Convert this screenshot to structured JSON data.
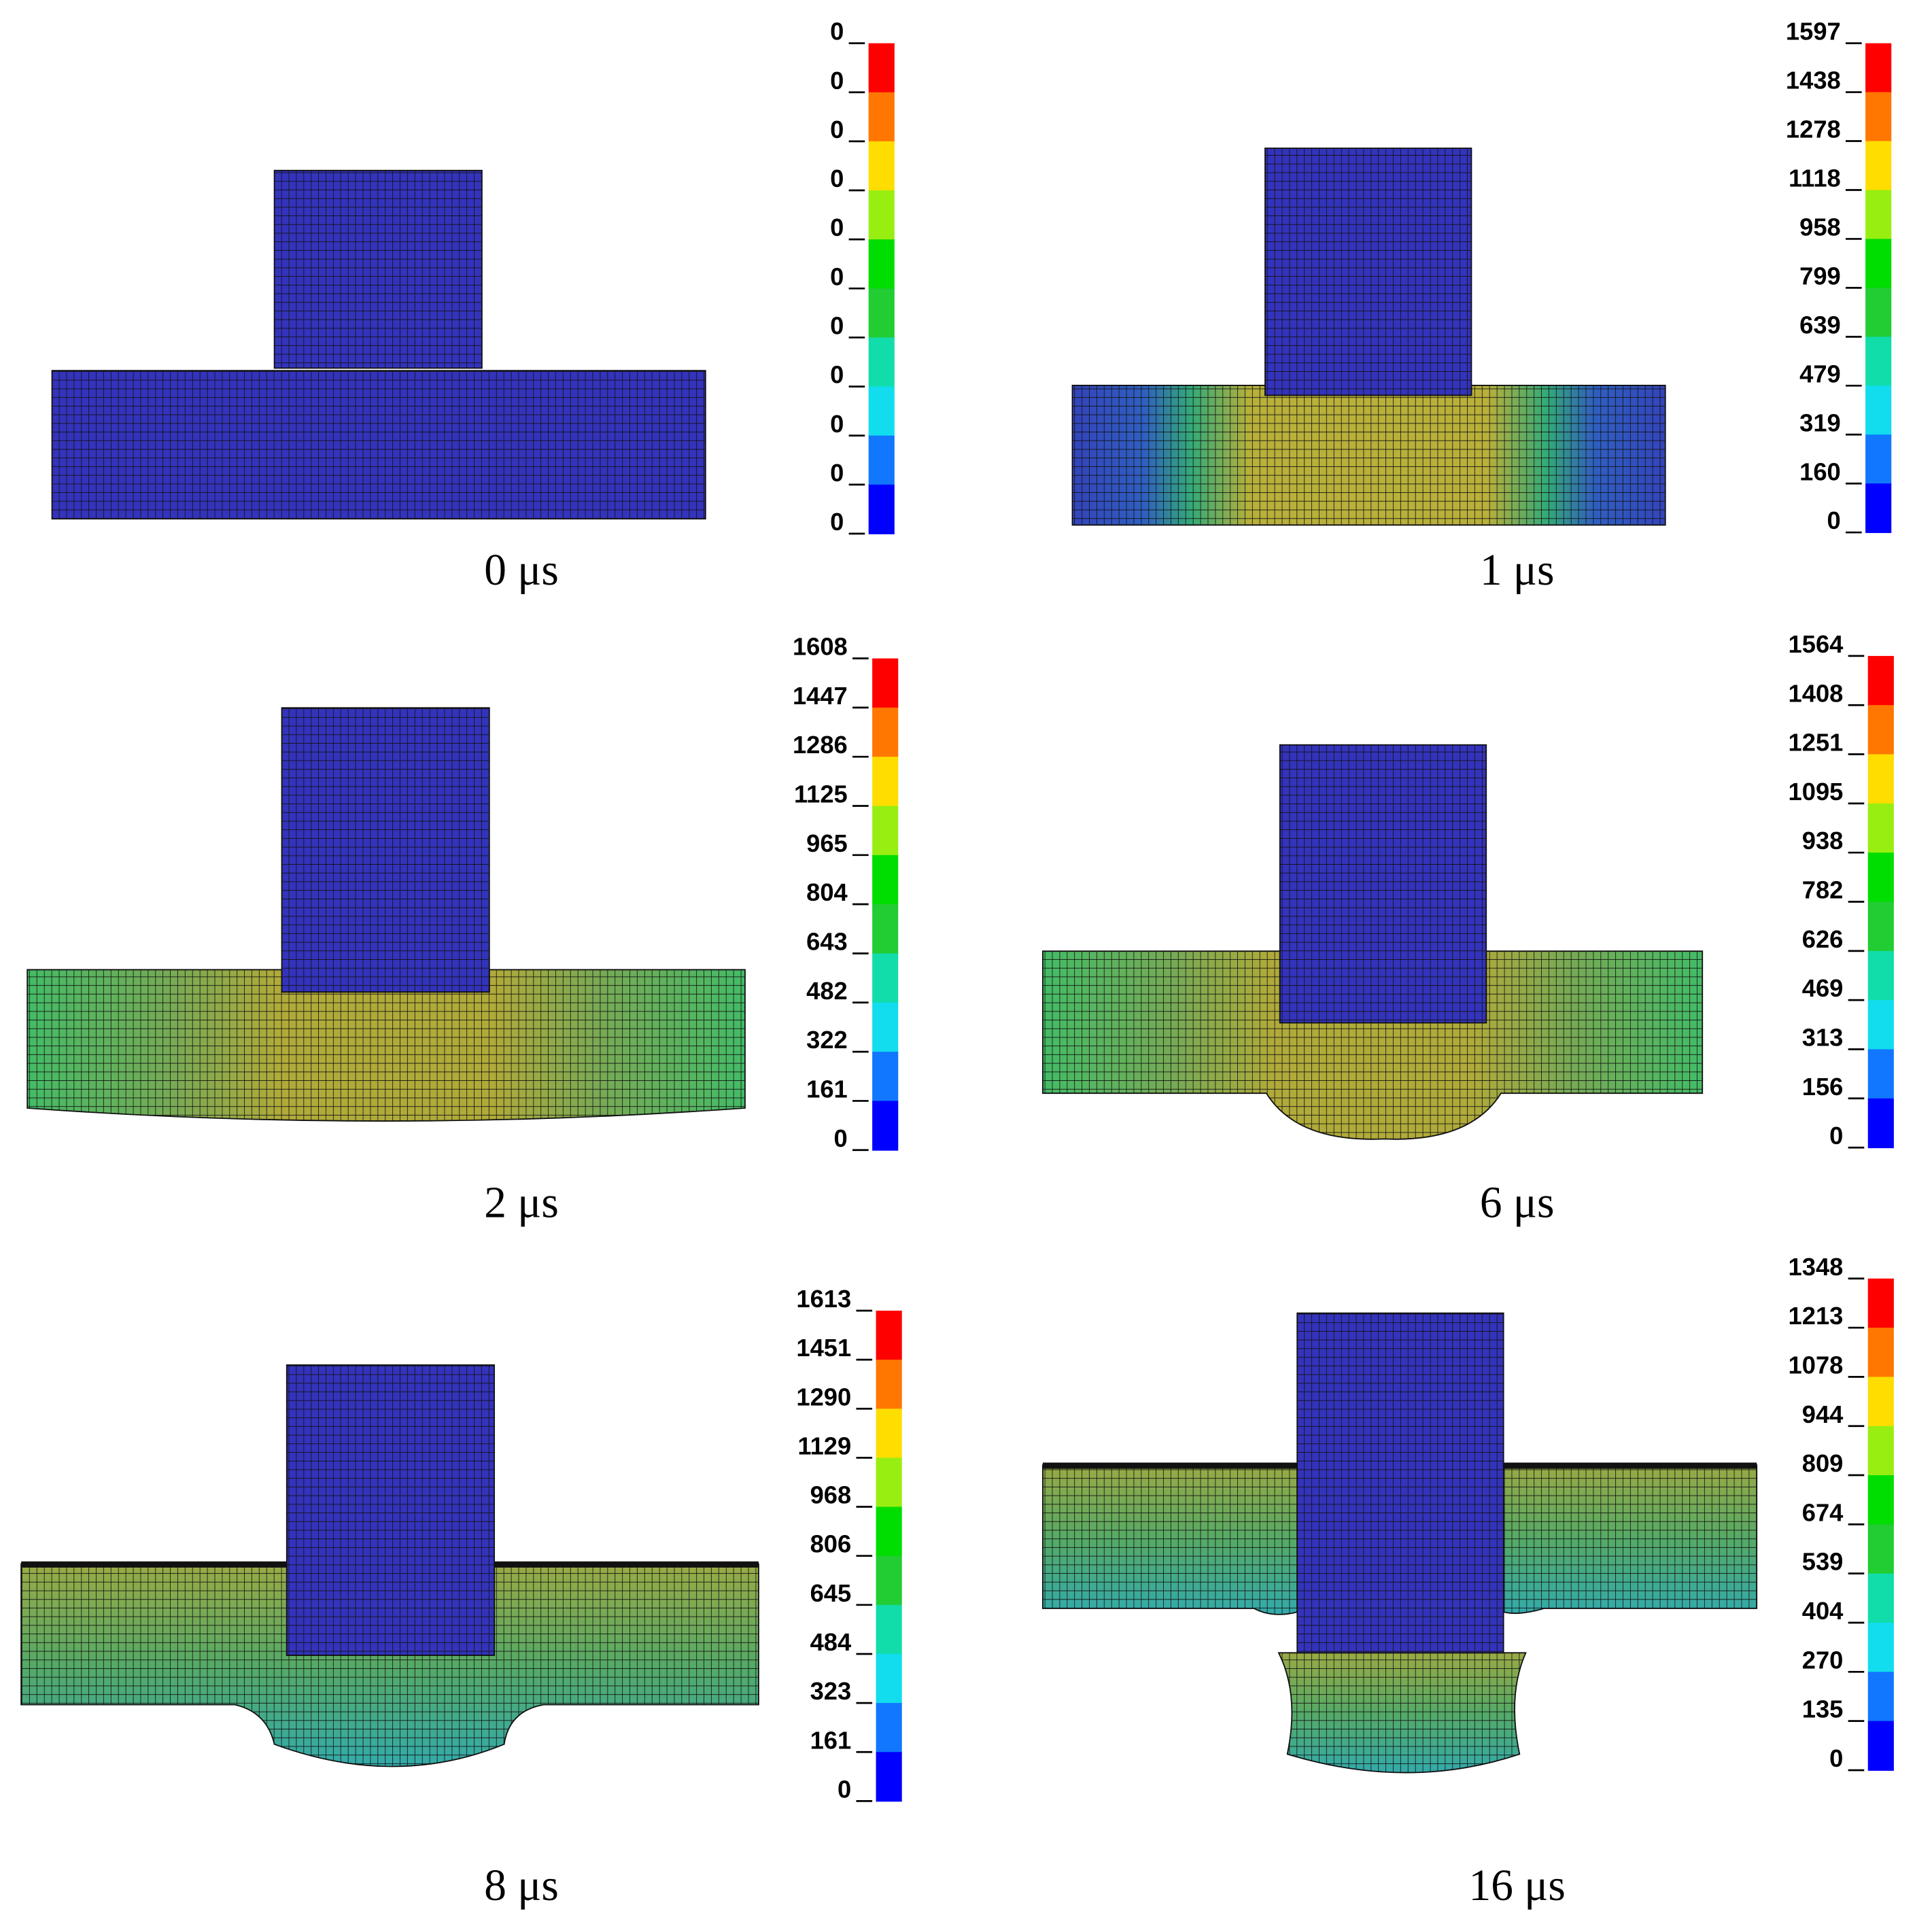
{
  "panels": [
    {
      "label": "0 μs",
      "colorbar": [
        0,
        0,
        0,
        0,
        0,
        0,
        0,
        0,
        0,
        0,
        0
      ]
    },
    {
      "label": "1 μs",
      "colorbar": [
        1597,
        1438,
        1278,
        1118,
        958,
        799,
        639,
        479,
        319,
        160,
        0
      ]
    },
    {
      "label": "2 μs",
      "colorbar": [
        1608,
        1447,
        1286,
        1125,
        965,
        804,
        643,
        482,
        322,
        161,
        0
      ]
    },
    {
      "label": "6 μs",
      "colorbar": [
        1564,
        1408,
        1251,
        1095,
        938,
        782,
        626,
        469,
        313,
        156,
        0
      ]
    },
    {
      "label": "8 μs",
      "colorbar": [
        1613,
        1451,
        1290,
        1129,
        968,
        806,
        645,
        484,
        323,
        161,
        0
      ]
    },
    {
      "label": "16 μs",
      "colorbar": [
        1348,
        1213,
        1078,
        944,
        809,
        674,
        539,
        404,
        270,
        135,
        0
      ]
    }
  ]
}
